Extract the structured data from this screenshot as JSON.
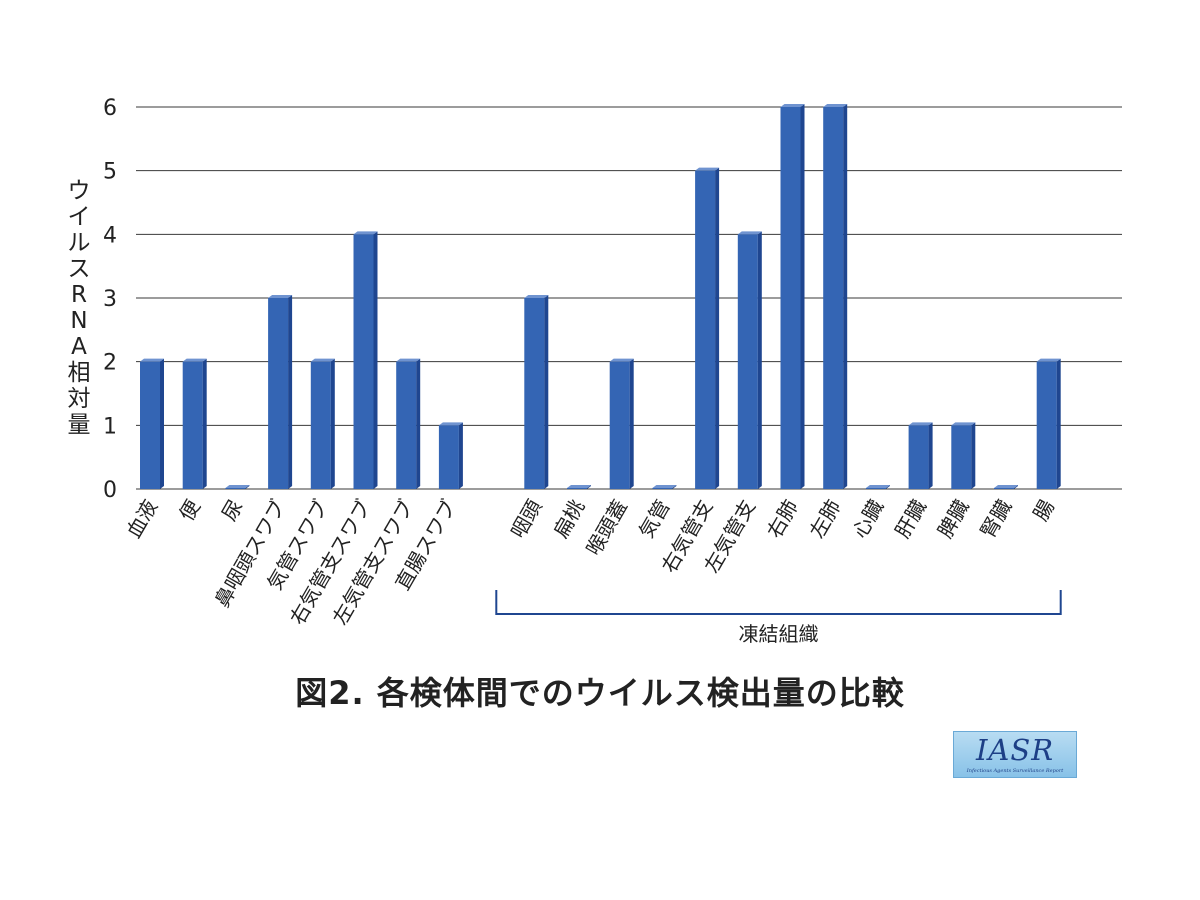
{
  "chart_data": {
    "type": "bar",
    "ylabel": "ウイルスRNA相対量",
    "ylim": [
      0,
      6
    ],
    "yticks": [
      0,
      1,
      2,
      3,
      4,
      5,
      6
    ],
    "grid": true,
    "categories": [
      "血液",
      "便",
      "尿",
      "鼻咽頭スワブ",
      "気管スワブ",
      "右気管支スワブ",
      "左気管支スワブ",
      "直腸スワブ",
      "咽頭",
      "扁桃",
      "喉頭蓋",
      "気管",
      "右気管支",
      "左気管支",
      "右肺",
      "左肺",
      "心臓",
      "肝臓",
      "脾臓",
      "腎臓",
      "腸"
    ],
    "values": [
      2,
      2,
      0,
      3,
      2,
      4,
      2,
      1,
      3,
      0,
      2,
      0,
      5,
      4,
      6,
      6,
      0,
      1,
      1,
      0,
      2
    ],
    "group_bracket": {
      "label": "凍結組織",
      "from": "咽頭",
      "to": "腸"
    },
    "bar_color": "#3465b4",
    "bar_side_color": "#1f4690",
    "bar_top_color": "#6f93d0"
  },
  "caption": "図2. 各検体間でのウイルス検出量の比較",
  "logo": {
    "main": "IASR",
    "sub": "Infectious Agents Surveillance Report"
  }
}
